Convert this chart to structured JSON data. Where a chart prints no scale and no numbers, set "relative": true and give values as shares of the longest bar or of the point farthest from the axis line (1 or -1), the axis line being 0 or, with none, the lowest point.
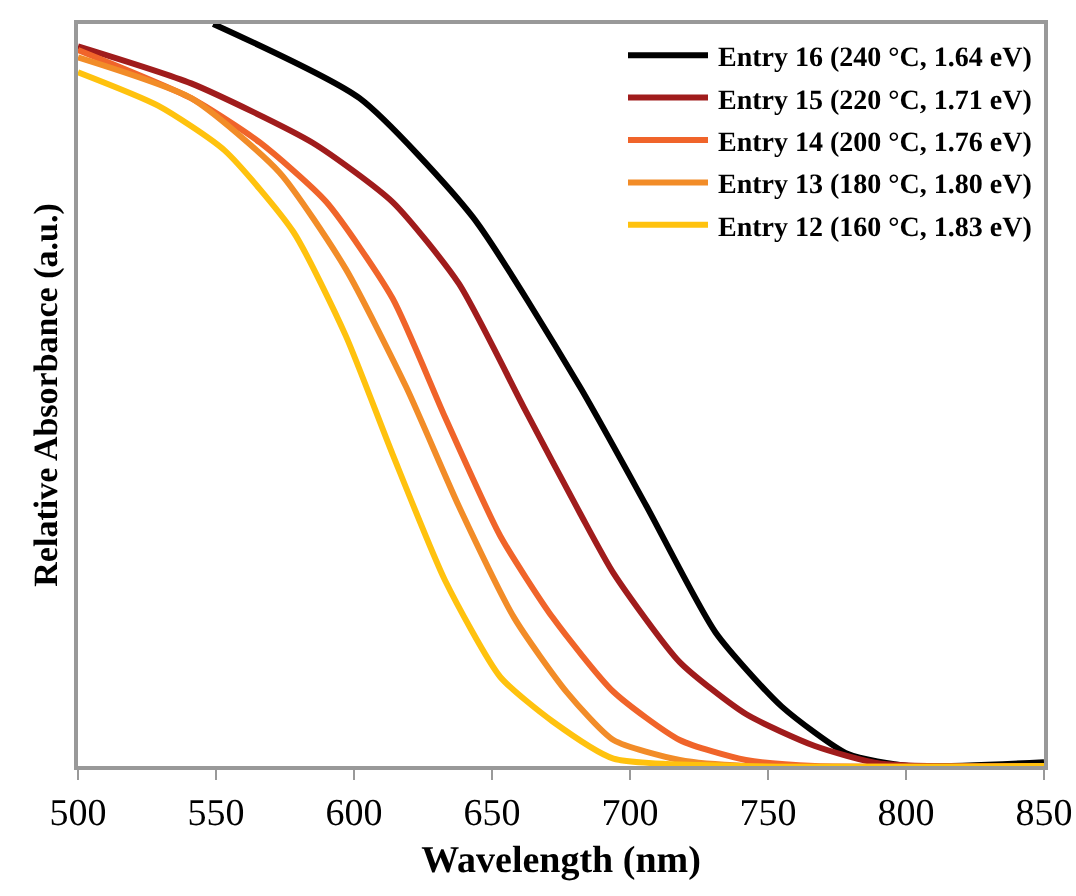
{
  "chart_data": {
    "type": "line",
    "xlabel": "Wavelength (nm)",
    "ylabel": "Relative Absorbance (a.u.)",
    "relative": true,
    "xlim": [
      500,
      850
    ],
    "xticks": [
      500,
      550,
      600,
      650,
      700,
      750,
      800,
      850
    ],
    "grid": false,
    "legend": "top right",
    "marker": "none",
    "line_style": "solid",
    "series": [
      {
        "name": "Entry 16 (240 °C, 1.64 eV)",
        "color": "#000000",
        "x": [
          549,
          602,
          643,
          682,
          706,
          731,
          755,
          779,
          801,
          850
        ],
        "values": [
          1.0,
          0.9,
          0.74,
          0.51,
          0.35,
          0.18,
          0.08,
          0.016,
          0.0,
          0.005
        ]
      },
      {
        "name": "Entry 15 (220 °C, 1.71 eV)",
        "color": "#a01c1c",
        "x": [
          500,
          541,
          585,
          614,
          638,
          662,
          682,
          694,
          718,
          742,
          767,
          791,
          850
        ],
        "values": [
          0.97,
          0.92,
          0.84,
          0.76,
          0.65,
          0.48,
          0.34,
          0.26,
          0.14,
          0.07,
          0.027,
          0.003,
          0.0
        ]
      },
      {
        "name": "Entry 14 (200 °C, 1.76 eV)",
        "color": "#f0642a",
        "x": [
          500,
          541,
          566,
          590,
          614,
          633,
          653,
          672,
          694,
          718,
          742,
          767,
          850
        ],
        "values": [
          0.965,
          0.9,
          0.84,
          0.76,
          0.63,
          0.47,
          0.31,
          0.2,
          0.1,
          0.035,
          0.008,
          0.0,
          0.0
        ]
      },
      {
        "name": "Entry 13 (180 °C, 1.80 eV)",
        "color": "#f28c28",
        "x": [
          500,
          541,
          573,
          597,
          619,
          638,
          658,
          677,
          694,
          718,
          742,
          850
        ],
        "values": [
          0.955,
          0.9,
          0.8,
          0.67,
          0.51,
          0.35,
          0.2,
          0.1,
          0.035,
          0.008,
          0.0,
          0.0
        ]
      },
      {
        "name": "Entry 12 (160 °C, 1.83 eV)",
        "color": "#ffc20e",
        "x": [
          500,
          529,
          553,
          578,
          597,
          614,
          633,
          653,
          672,
          694,
          740,
          850
        ],
        "values": [
          0.935,
          0.89,
          0.83,
          0.72,
          0.58,
          0.42,
          0.25,
          0.12,
          0.06,
          0.01,
          0.0,
          0.0
        ]
      }
    ]
  }
}
